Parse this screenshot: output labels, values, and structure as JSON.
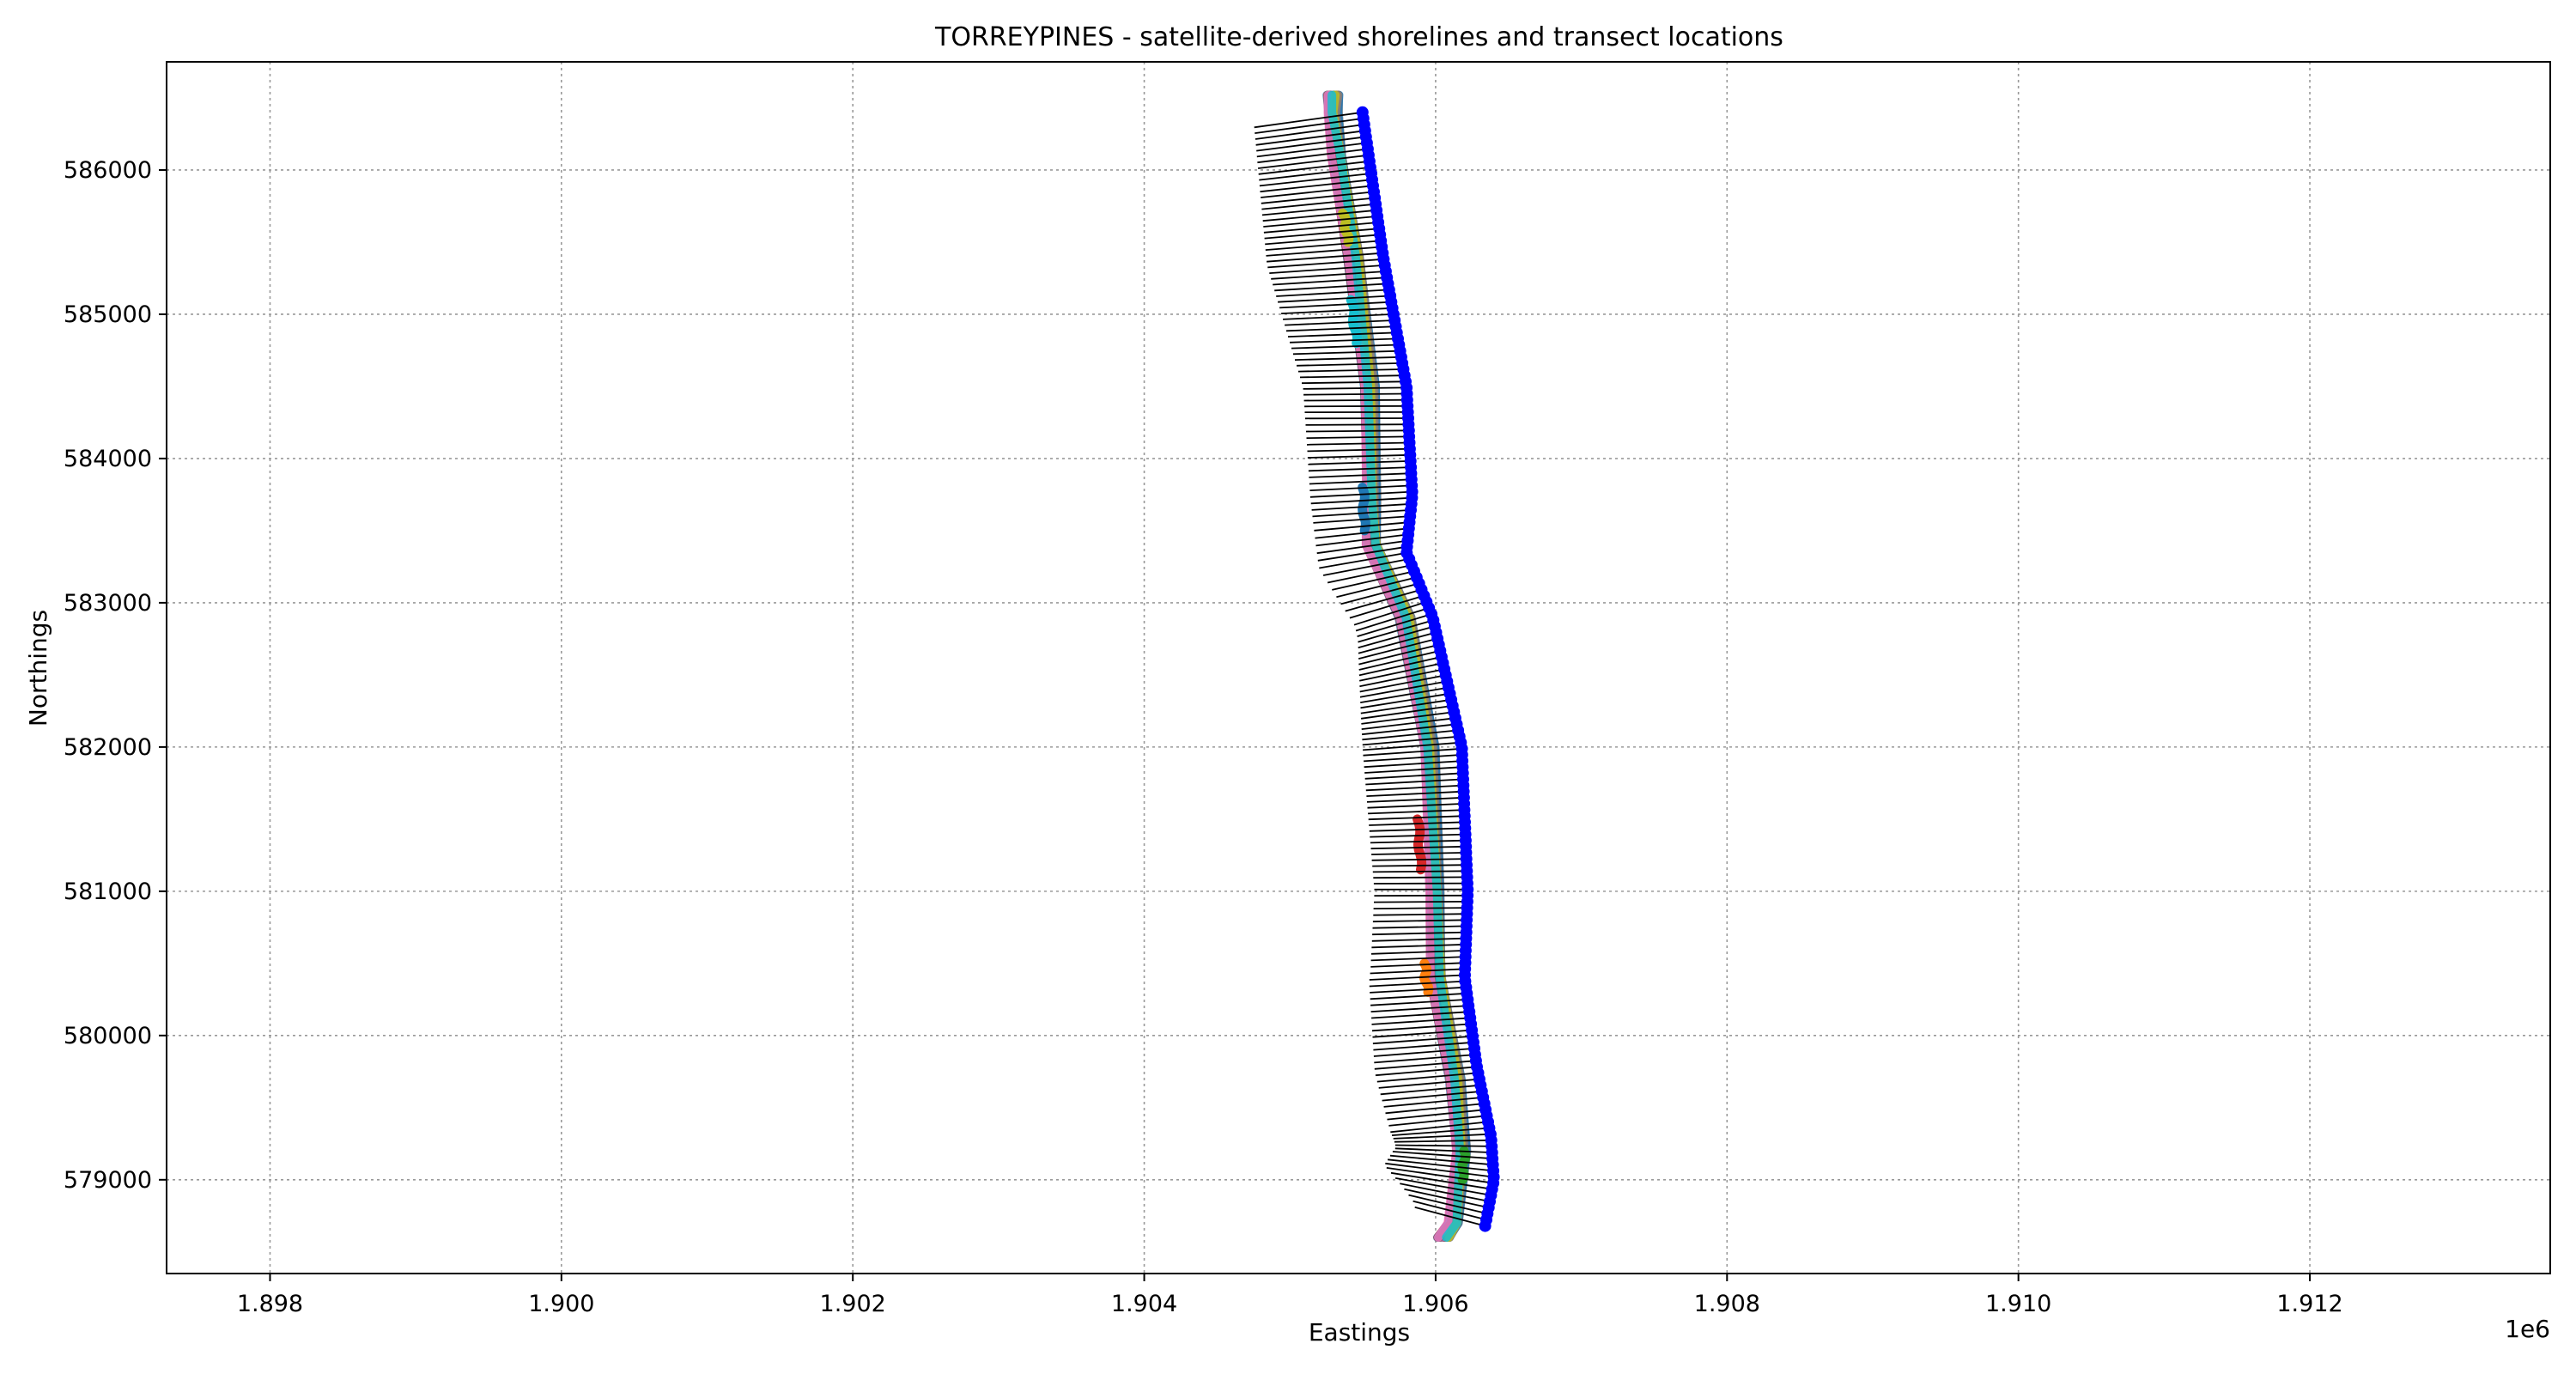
{
  "chart_data": {
    "type": "line",
    "title": "TORREYPINES - satellite-derived shorelines and transect locations",
    "xlabel": "Eastings",
    "ylabel": "Northings",
    "x_offset_label": "1e6",
    "xlim": [
      1.89729,
      1.91365
    ],
    "ylim": [
      578350,
      586750
    ],
    "x_scale_factor": 1000000,
    "x_ticks": [
      1.898,
      1.9,
      1.902,
      1.904,
      1.906,
      1.908,
      1.91,
      1.912
    ],
    "x_tick_labels": [
      "1.898",
      "1.900",
      "1.902",
      "1.904",
      "1.906",
      "1.908",
      "1.910",
      "1.912"
    ],
    "y_ticks": [
      579000,
      580000,
      581000,
      582000,
      583000,
      584000,
      585000,
      586000
    ],
    "y_tick_labels": [
      "579000",
      "580000",
      "581000",
      "582000",
      "583000",
      "584000",
      "585000",
      "586000"
    ],
    "grid": true,
    "legend": "none",
    "colors": {
      "transect_line": "#000000",
      "transect_origin": "#0000ff",
      "shoreline_palette": [
        "#1f77b4",
        "#ff7f0e",
        "#2ca02c",
        "#d62728",
        "#9467bd",
        "#8c564b",
        "#e377c2",
        "#7f7f7f",
        "#bcbd22",
        "#17becf"
      ]
    },
    "transect_origin_anchors": [
      [
        1905498,
        586400
      ],
      [
        1905640,
        585400
      ],
      [
        1905800,
        584500
      ],
      [
        1905840,
        583750
      ],
      [
        1905800,
        583350
      ],
      [
        1905980,
        582900
      ],
      [
        1906180,
        582000
      ],
      [
        1906220,
        581000
      ],
      [
        1906200,
        580400
      ],
      [
        1906280,
        579800
      ],
      [
        1906380,
        579300
      ],
      [
        1906400,
        579000
      ],
      [
        1906340,
        578680
      ]
    ],
    "transect_length_anchors": [
      [
        586400,
        750
      ],
      [
        585400,
        800
      ],
      [
        584500,
        710
      ],
      [
        583750,
        700
      ],
      [
        583300,
        600
      ],
      [
        583000,
        520
      ],
      [
        582000,
        680
      ],
      [
        581000,
        640
      ],
      [
        580500,
        650
      ],
      [
        579800,
        700
      ],
      [
        579200,
        660
      ],
      [
        579000,
        760
      ],
      [
        578700,
        500
      ]
    ],
    "transect_angle_anchors": [
      [
        586400,
        8
      ],
      [
        584300,
        0
      ],
      [
        583600,
        4
      ],
      [
        583000,
        18
      ],
      [
        582000,
        4
      ],
      [
        581000,
        0
      ],
      [
        580400,
        3
      ],
      [
        579400,
        6
      ],
      [
        579150,
        -4
      ],
      [
        578700,
        -15
      ]
    ],
    "transect_count": 183,
    "shoreline_count": 30,
    "shoreline_centerline": [
      [
        1905290,
        586520
      ],
      [
        1905290,
        586400
      ],
      [
        1905330,
        586100
      ],
      [
        1905440,
        585400
      ],
      [
        1905540,
        584500
      ],
      [
        1905560,
        583700
      ],
      [
        1905570,
        583400
      ],
      [
        1905790,
        582900
      ],
      [
        1905950,
        582000
      ],
      [
        1906000,
        581000
      ],
      [
        1906010,
        580400
      ],
      [
        1906130,
        579700
      ],
      [
        1906170,
        579200
      ],
      [
        1906130,
        578700
      ],
      [
        1906060,
        578600
      ]
    ],
    "shoreline_anomalies": [
      {
        "color": "#bcbd22",
        "x_offset": -25,
        "y_range": [
          585500,
          585700
        ]
      },
      {
        "color": "#17becf",
        "x_offset": -50,
        "y_range": [
          584800,
          585100
        ]
      },
      {
        "color": "#1f77b4",
        "x_offset": -55,
        "y_range": [
          583500,
          583800
        ]
      },
      {
        "color": "#d62728",
        "x_offset": -95,
        "y_range": [
          581150,
          581500
        ]
      },
      {
        "color": "#ff7f0e",
        "x_offset": -80,
        "y_range": [
          580300,
          580500
        ]
      },
      {
        "color": "#2ca02c",
        "x_offset": 30,
        "y_range": [
          579000,
          579200
        ]
      }
    ]
  }
}
